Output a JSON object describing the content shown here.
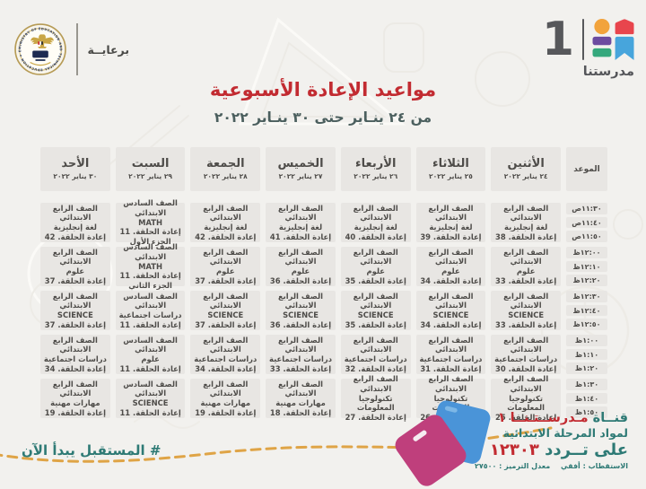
{
  "sponsor": {
    "label": "برعايــة",
    "logo": "ministry-of-education-emblem"
  },
  "brand": {
    "channel_number": "1",
    "name": "مدرستنا"
  },
  "title": {
    "main": "مواعيد الإعادة الأسبوعية",
    "range": "من ٢٤ ينـاير حتى ٣٠ ينـاير ٢٠٢٢"
  },
  "table": {
    "time_header": "الموعد",
    "days": [
      {
        "name": "الأثنين",
        "date": "٢٤ يناير ٢٠٢٢"
      },
      {
        "name": "الثلاثاء",
        "date": "٢٥ يناير ٢٠٢٢"
      },
      {
        "name": "الأربعاء",
        "date": "٢٦ يناير ٢٠٢٢"
      },
      {
        "name": "الخميس",
        "date": "٢٧ يناير ٢٠٢٢"
      },
      {
        "name": "الجمعة",
        "date": "٢٨ يناير ٢٠٢٢"
      },
      {
        "name": "السبت",
        "date": "٢٩ يناير ٢٠٢٢"
      },
      {
        "name": "الأحد",
        "date": "٣٠ يناير ٢٠٢٢"
      }
    ],
    "rows": [
      {
        "times": [
          "١١:٣٠ص",
          "١١:٤٠ص",
          "١١:٥٠ص"
        ],
        "cells": [
          {
            "grade": "الصف الرابع الابتدائي",
            "subject": "لغة إنجليزية",
            "episode": "إعادة الحلقة. 38"
          },
          {
            "grade": "الصف الرابع الابتدائي",
            "subject": "لغة إنجليزية",
            "episode": "إعادة الحلقة. 39"
          },
          {
            "grade": "الصف الرابع الابتدائي",
            "subject": "لغة إنجليزية",
            "episode": "إعادة الحلقة. 40"
          },
          {
            "grade": "الصف الرابع الابتدائي",
            "subject": "لغة إنجليزية",
            "episode": "إعادة الحلقة. 41"
          },
          {
            "grade": "الصف الرابع الابتدائي",
            "subject": "لغة إنجليزية",
            "episode": "إعادة الحلقة. 42"
          },
          {
            "grade": "الصف السادس الابتدائي",
            "subject": "MATH",
            "episode": "إعادة الحلقة. 11",
            "part": "الجزء الأول"
          },
          {
            "grade": "الصف الرابع الابتدائي",
            "subject": "لغة إنجليزية",
            "episode": "إعادة الحلقة. 42"
          }
        ]
      },
      {
        "times": [
          "١٢:٠٠ظ",
          "١٢:١٠ظ",
          "١٢:٢٠ظ"
        ],
        "cells": [
          {
            "grade": "الصف الرابع الابتدائي",
            "subject": "علوم",
            "episode": "إعادة الحلقة. 33"
          },
          {
            "grade": "الصف الرابع الابتدائي",
            "subject": "علوم",
            "episode": "إعادة الحلقة. 34"
          },
          {
            "grade": "الصف الرابع الابتدائي",
            "subject": "علوم",
            "episode": "إعادة الحلقة. 35"
          },
          {
            "grade": "الصف الرابع الابتدائي",
            "subject": "علوم",
            "episode": "إعادة الحلقة. 36"
          },
          {
            "grade": "الصف الرابع الابتدائي",
            "subject": "علوم",
            "episode": "إعادة الحلقة. 37"
          },
          {
            "grade": "الصف السادس الابتدائي",
            "subject": "MATH",
            "episode": "إعادة الحلقة. 11",
            "part": "الجزء الثاني"
          },
          {
            "grade": "الصف الرابع الابتدائي",
            "subject": "علوم",
            "episode": "إعادة الحلقة. 37"
          }
        ]
      },
      {
        "times": [
          "١٢:٣٠ظ",
          "١٢:٤٠ظ",
          "١٢:٥٠ظ"
        ],
        "cells": [
          {
            "grade": "الصف الرابع الابتدائي",
            "subject": "SCIENCE",
            "episode": "إعادة الحلقة. 33"
          },
          {
            "grade": "الصف الرابع الابتدائي",
            "subject": "SCIENCE",
            "episode": "إعادة الحلقة. 34"
          },
          {
            "grade": "الصف الرابع الابتدائي",
            "subject": "SCIENCE",
            "episode": "إعادة الحلقة. 35"
          },
          {
            "grade": "الصف الرابع الابتدائي",
            "subject": "SCIENCE",
            "episode": "إعادة الحلقة. 36"
          },
          {
            "grade": "الصف الرابع الابتدائي",
            "subject": "SCIENCE",
            "episode": "إعادة الحلقة. 37"
          },
          {
            "grade": "الصف السادس الابتدائي",
            "subject": "دراسات اجتماعية",
            "episode": "إعادة الحلقة. 11"
          },
          {
            "grade": "الصف الرابع الابتدائي",
            "subject": "SCIENCE",
            "episode": "إعادة الحلقة. 37"
          }
        ]
      },
      {
        "times": [
          "١:٠٠ظ",
          "١:١٠ظ",
          "١:٢٠ظ"
        ],
        "cells": [
          {
            "grade": "الصف الرابع الابتدائي",
            "subject": "دراسات اجتماعية",
            "episode": "إعادة الحلقة. 30"
          },
          {
            "grade": "الصف الرابع الابتدائي",
            "subject": "دراسات اجتماعية",
            "episode": "إعادة الحلقة. 31"
          },
          {
            "grade": "الصف الرابع الابتدائي",
            "subject": "دراسات اجتماعية",
            "episode": "إعادة الحلقة. 32"
          },
          {
            "grade": "الصف الرابع الابتدائي",
            "subject": "دراسات اجتماعية",
            "episode": "إعادة الحلقة. 33"
          },
          {
            "grade": "الصف الرابع الابتدائي",
            "subject": "دراسات اجتماعية",
            "episode": "إعادة الحلقة. 34"
          },
          {
            "grade": "الصف السادس الابتدائي",
            "subject": "علوم",
            "episode": "إعادة الحلقة. 11"
          },
          {
            "grade": "الصف الرابع الابتدائي",
            "subject": "دراسات اجتماعية",
            "episode": "إعادة الحلقة. 34"
          }
        ]
      },
      {
        "times": [
          "١:٣٠ظ",
          "١:٤٠ظ",
          "١:٥٠ظ"
        ],
        "cells": [
          {
            "grade": "الصف الرابع الابتدائي",
            "subject": "تكنولوجيا المعلومات",
            "episode": "إعادة الحلقة. 25"
          },
          {
            "grade": "الصف الرابع الابتدائي",
            "subject": "تكنولوجيا المعلومات",
            "episode": "إعادة الحلقة. 26"
          },
          {
            "grade": "الصف الرابع الابتدائي",
            "subject": "تكنولوجيا المعلومات",
            "episode": "إعادة الحلقة. 27"
          },
          {
            "grade": "الصف الرابع الابتدائي",
            "subject": "مهارات مهنية",
            "episode": "إعادة الحلقة. 18"
          },
          {
            "grade": "الصف الرابع الابتدائي",
            "subject": "مهارات مهنية",
            "episode": "إعادة الحلقة. 19"
          },
          {
            "grade": "الصف السادس الابتدائي",
            "subject": "SCIENCE",
            "episode": "إعادة الحلقة. 11"
          },
          {
            "grade": "الصف الرابع الابتدائي",
            "subject": "مهارات مهنية",
            "episode": "إعادة الحلقة. 19"
          }
        ]
      }
    ]
  },
  "footer": {
    "hashtag": "# المستقبل يبدأ الآن",
    "channel_prefix": "قنــاة",
    "channel_name": "مـدرســتـنــا ١",
    "audience_line": "لمواد المرحلة الابتدائية",
    "frequency_prefix": "على تــردد",
    "frequency_value": "١٢٣٠٣",
    "polarization": "الاستقطاب : أفقي",
    "symbol_rate": "معدل الترميز : ٢٧٥٠٠"
  },
  "colors": {
    "accent_red": "#c22b31",
    "teal": "#2e7a75",
    "cell_gray": "#e8e6e3",
    "text_gray": "#4e4c49",
    "dash_gold": "#dfa446",
    "book_pink": "#bf3f7c",
    "book_blue": "#4a94d8",
    "logo_orange": "#f2a33c",
    "logo_red": "#e8454d",
    "logo_purple": "#6c4ba0",
    "logo_green": "#35a87c",
    "logo_blue": "#47a5dc"
  }
}
